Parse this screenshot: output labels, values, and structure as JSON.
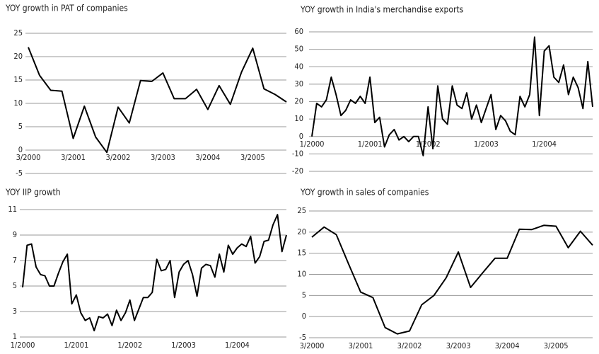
{
  "chart_data": [
    {
      "type": "line",
      "title": "YOY growth in PAT of companies",
      "color": "#000000",
      "categories": [
        "3/2000",
        null,
        null,
        null,
        "3/2001",
        null,
        null,
        null,
        "3/2002",
        null,
        null,
        null,
        "3/2003",
        null,
        null,
        null,
        "3/2004",
        null,
        null,
        null,
        "3/2005",
        null,
        null,
        null
      ],
      "values": [
        22,
        16,
        12.8,
        12.6,
        2.5,
        9.4,
        2.8,
        -0.5,
        9.2,
        5.8,
        14.9,
        14.7,
        16.5,
        11,
        11,
        13,
        8.7,
        13.8,
        9.8,
        16.7,
        21.8,
        13.1,
        11.9,
        10.3
      ],
      "ylim": [
        -5,
        25
      ],
      "yticks": [
        -5,
        0,
        5,
        10,
        15,
        20,
        25
      ],
      "grid": true
    },
    {
      "type": "line",
      "title": "YOY growth in India's merchandise exports",
      "color": "#000000",
      "categories": [
        "1/2000",
        null,
        null,
        null,
        null,
        null,
        null,
        null,
        null,
        null,
        null,
        null,
        "1/2001",
        null,
        null,
        null,
        null,
        null,
        null,
        null,
        null,
        null,
        null,
        null,
        "1/2002",
        null,
        null,
        null,
        null,
        null,
        null,
        null,
        null,
        null,
        null,
        null,
        "1/2003",
        null,
        null,
        null,
        null,
        null,
        null,
        null,
        null,
        null,
        null,
        null,
        "1/2004",
        null,
        null,
        null,
        null,
        null,
        null,
        null,
        null,
        null,
        null
      ],
      "values": [
        0,
        19,
        17,
        21,
        34,
        24,
        12,
        15,
        21,
        19,
        23,
        19,
        34,
        8,
        11,
        -6,
        1,
        4,
        -2,
        0,
        -3,
        0,
        0,
        -11,
        17,
        -7,
        29,
        10,
        7,
        29,
        18,
        16,
        25,
        10,
        18,
        8,
        16,
        24,
        4,
        12,
        9,
        3,
        1,
        23,
        17,
        24,
        57,
        12,
        49,
        52,
        34,
        31,
        41,
        24,
        34,
        28,
        16,
        43,
        17
      ],
      "ylim": [
        -20,
        60
      ],
      "yticks": [
        -20,
        -10,
        0,
        10,
        20,
        30,
        40,
        50,
        60
      ],
      "grid": true
    },
    {
      "type": "line",
      "title": "YOY IIP growth",
      "color": "#000000",
      "categories": [
        "1/2000",
        null,
        null,
        null,
        null,
        null,
        null,
        null,
        null,
        null,
        null,
        null,
        "1/2001",
        null,
        null,
        null,
        null,
        null,
        null,
        null,
        null,
        null,
        null,
        null,
        "1/2002",
        null,
        null,
        null,
        null,
        null,
        null,
        null,
        null,
        null,
        null,
        null,
        "1/2003",
        null,
        null,
        null,
        null,
        null,
        null,
        null,
        null,
        null,
        null,
        null,
        "1/2004",
        null,
        null,
        null,
        null,
        null,
        null,
        null,
        null,
        null,
        null,
        null
      ],
      "values": [
        4.9,
        8.2,
        8.3,
        6.5,
        5.9,
        5.8,
        5.0,
        5.0,
        6.0,
        6.9,
        7.5,
        3.6,
        4.3,
        2.9,
        2.3,
        2.5,
        1.5,
        2.6,
        2.5,
        2.8,
        1.9,
        3.1,
        2.3,
        2.9,
        3.9,
        2.3,
        3.2,
        4.1,
        4.1,
        4.5,
        7.1,
        6.2,
        6.3,
        7.0,
        4.1,
        6.1,
        6.7,
        7.0,
        5.9,
        4.2,
        6.4,
        6.7,
        6.6,
        5.7,
        7.5,
        6.1,
        8.2,
        7.5,
        8.0,
        8.3,
        8.1,
        8.9,
        6.8,
        7.3,
        8.5,
        8.6,
        9.8,
        10.6,
        7.7,
        9.0
      ],
      "ylim": [
        1,
        11
      ],
      "yticks": [
        1,
        3,
        5,
        7,
        9,
        11
      ],
      "grid": true
    },
    {
      "type": "line",
      "title": "YOY growth in sales of companies",
      "color": "#000000",
      "categories": [
        "3/2000",
        null,
        null,
        null,
        "3/2001",
        null,
        null,
        null,
        "3/2002",
        null,
        null,
        null,
        "3/2003",
        null,
        null,
        null,
        "3/2004",
        null,
        null,
        null,
        "3/2005",
        null,
        null,
        null
      ],
      "values": [
        18.8,
        21.2,
        19.4,
        12.5,
        5.8,
        4.5,
        -2.6,
        -4.1,
        -3.4,
        2.8,
        5,
        9.2,
        15.3,
        6.9,
        10.4,
        13.8,
        13.8,
        20.7,
        20.6,
        21.6,
        21.4,
        16.3,
        20.2,
        16.9
      ],
      "ylim": [
        -5,
        25
      ],
      "yticks": [
        -5,
        0,
        5,
        10,
        15,
        20,
        25
      ],
      "grid": true
    }
  ]
}
